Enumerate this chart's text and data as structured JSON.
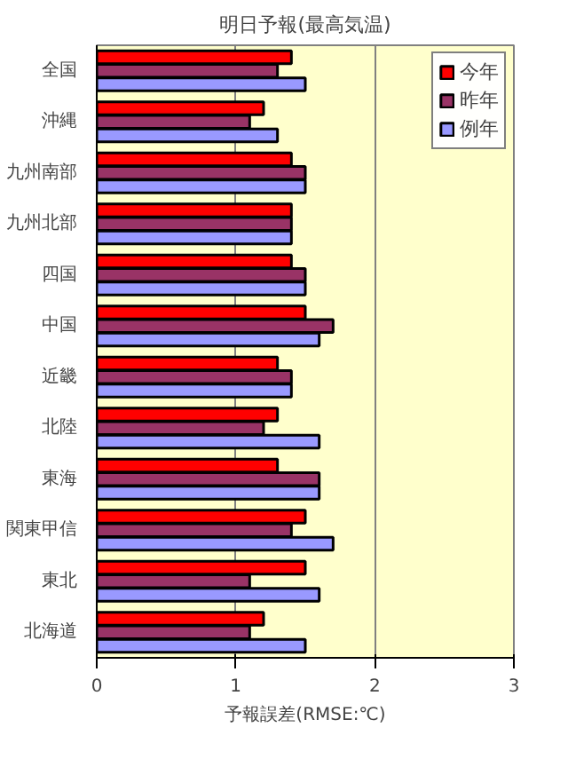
{
  "chart_data": {
    "type": "bar",
    "orientation": "horizontal",
    "title": "明日予報(最高気温)",
    "xlabel": "予報誤差(RMSE:℃)",
    "categories": [
      "全国",
      "沖縄",
      "九州南部",
      "九州北部",
      "四国",
      "中国",
      "近畿",
      "北陸",
      "東海",
      "関東甲信",
      "東北",
      "北海道"
    ],
    "series": [
      {
        "name": "今年",
        "color": "#ff0000",
        "values": [
          1.4,
          1.2,
          1.4,
          1.4,
          1.4,
          1.5,
          1.3,
          1.3,
          1.3,
          1.5,
          1.5,
          1.2
        ]
      },
      {
        "name": "昨年",
        "color": "#993366",
        "values": [
          1.3,
          1.1,
          1.5,
          1.4,
          1.5,
          1.7,
          1.4,
          1.2,
          1.6,
          1.4,
          1.1,
          1.1
        ]
      },
      {
        "name": "例年",
        "color": "#9999ff",
        "values": [
          1.5,
          1.3,
          1.5,
          1.4,
          1.5,
          1.6,
          1.4,
          1.6,
          1.6,
          1.7,
          1.6,
          1.5
        ]
      }
    ],
    "xlim": [
      0,
      3
    ],
    "xticks": [
      0,
      1,
      2,
      3
    ],
    "grid": "x",
    "legend": "top right"
  }
}
